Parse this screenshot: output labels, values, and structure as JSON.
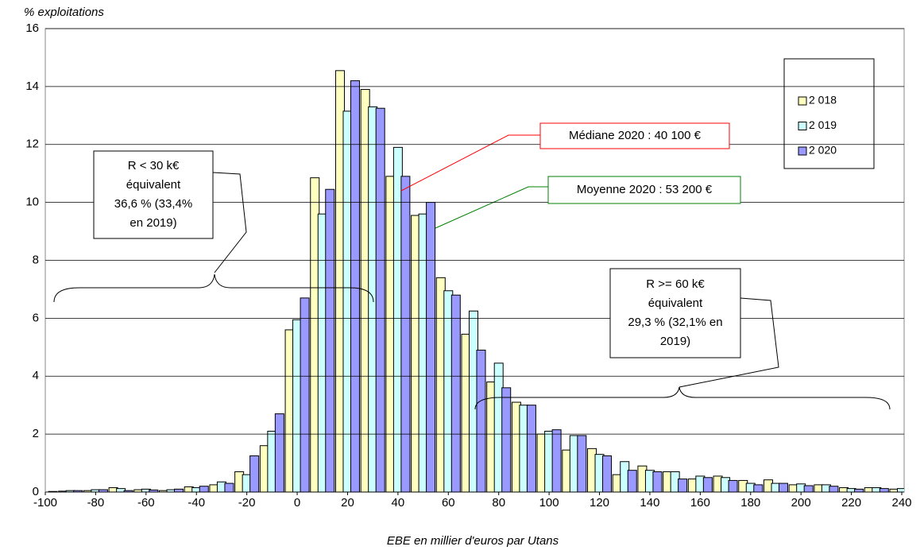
{
  "chart_data": {
    "type": "bar",
    "y_label": "% exploitations",
    "x_label": "EBE en millier d'euros par Utans",
    "x": [
      -100,
      -90,
      -80,
      -70,
      -60,
      -50,
      -40,
      -30,
      -20,
      -10,
      0,
      10,
      20,
      30,
      40,
      50,
      60,
      70,
      80,
      90,
      100,
      110,
      120,
      130,
      140,
      150,
      160,
      170,
      180,
      190,
      200,
      210,
      220,
      230,
      240
    ],
    "series": [
      {
        "name": "2 018",
        "color": "#ffffc0",
        "values": [
          0,
          0.03,
          0.05,
          0.15,
          0.08,
          0.05,
          0.18,
          0.25,
          0.7,
          1.6,
          5.6,
          10.85,
          14.55,
          13.9,
          10.9,
          9.55,
          7.4,
          5.45,
          3.8,
          3.1,
          2.0,
          1.45,
          1.5,
          0.6,
          0.9,
          0.7,
          0.45,
          0.55,
          0.4,
          0.42,
          0.25,
          0.25,
          0.15,
          0.15,
          0.1
        ]
      },
      {
        "name": "2 019",
        "color": "#ccffff",
        "values": [
          0,
          0.05,
          0.08,
          0.12,
          0.1,
          0.08,
          0.15,
          0.35,
          0.6,
          2.1,
          5.95,
          9.6,
          13.15,
          13.3,
          11.9,
          9.6,
          6.95,
          6.25,
          4.45,
          3.0,
          2.1,
          1.95,
          1.3,
          1.05,
          0.75,
          0.7,
          0.55,
          0.5,
          0.3,
          0.3,
          0.28,
          0.25,
          0.12,
          0.15,
          0.12
        ]
      },
      {
        "name": "2 020",
        "color": "#9999ff",
        "values": [
          0.02,
          0.05,
          0.08,
          0.05,
          0.07,
          0.1,
          0.2,
          0.3,
          1.25,
          2.7,
          6.7,
          10.45,
          14.2,
          13.25,
          10.9,
          10.0,
          6.8,
          4.9,
          3.6,
          3.0,
          2.15,
          1.95,
          1.25,
          0.75,
          0.7,
          0.45,
          0.5,
          0.4,
          0.25,
          0.3,
          0.22,
          0.2,
          0.1,
          0.12,
          0.1
        ]
      }
    ],
    "xlim": [
      -100,
      240
    ],
    "xticks": [
      -100,
      -80,
      -60,
      -40,
      -20,
      0,
      20,
      40,
      60,
      80,
      100,
      120,
      140,
      160,
      180,
      200,
      220,
      240
    ],
    "ylim": [
      0,
      16
    ],
    "yticks": [
      0,
      2,
      4,
      6,
      8,
      10,
      12,
      14,
      16
    ],
    "grid": true,
    "annotations": [
      {
        "lines": [
          "R  < 30 k€",
          "équivalent",
          "36,6 % (33,4%",
          "en 2019)"
        ],
        "color": "#000000"
      },
      {
        "lines": [
          "Médiane 2020 : 40 100  €"
        ],
        "color": "#ff0000"
      },
      {
        "lines": [
          "Moyenne 2020 : 53 200 €"
        ],
        "color": "#008000"
      },
      {
        "lines": [
          "R  >= 60 k€",
          "équivalent",
          "29,3 % (32,1% en",
          "2019)"
        ],
        "color": "#000000"
      }
    ]
  }
}
